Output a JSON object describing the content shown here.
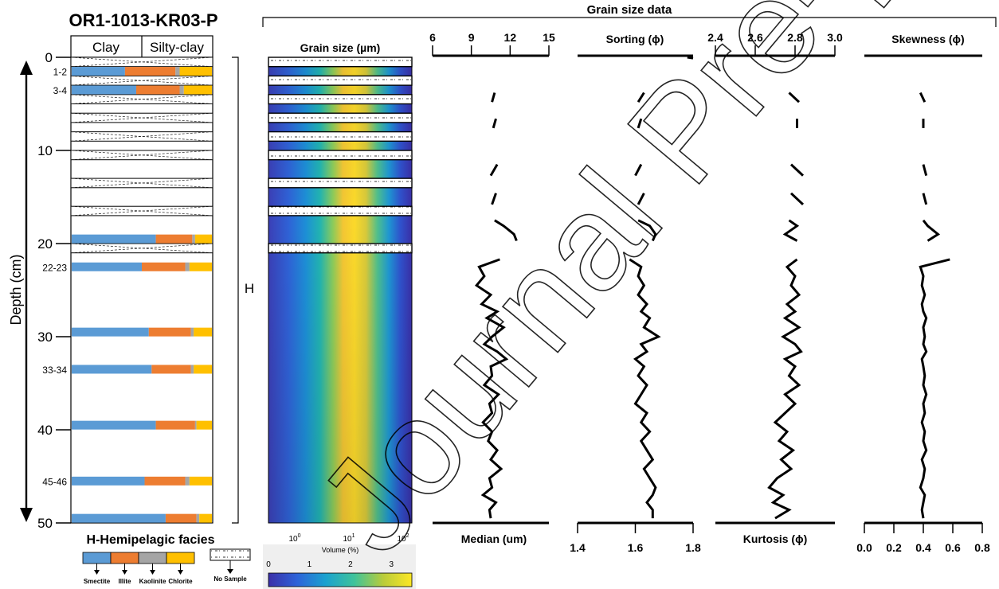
{
  "core": {
    "title": "OR1-1013-KR03-P",
    "lithology_headers": [
      "Clay",
      "Silty-clay"
    ],
    "depth_axis_label": "Depth (cm)",
    "depth_ticks": [
      "0",
      "10",
      "20",
      "30",
      "40",
      "50"
    ],
    "facies_mark": "H",
    "facies_title": "H-Hemipelagic facies"
  },
  "clay_samples": [
    {
      "label": "1-2",
      "depth": 1.5,
      "smectite": 38,
      "illite": 36,
      "kaolinite": 3,
      "chlorite": 23
    },
    {
      "label": "3-4",
      "depth": 3.5,
      "smectite": 46,
      "illite": 31,
      "kaolinite": 3,
      "chlorite": 20
    },
    {
      "label": "20",
      "depth": 19.5,
      "smectite": 60,
      "illite": 26,
      "kaolinite": 2,
      "chlorite": 12
    },
    {
      "label": "22-23",
      "depth": 22.5,
      "smectite": 50,
      "illite": 31,
      "kaolinite": 3,
      "chlorite": 16
    },
    {
      "label": "30",
      "depth": 29.5,
      "smectite": 55,
      "illite": 30,
      "kaolinite": 2,
      "chlorite": 13
    },
    {
      "label": "33-34",
      "depth": 33.5,
      "smectite": 57,
      "illite": 28,
      "kaolinite": 2,
      "chlorite": 13
    },
    {
      "label": "40",
      "depth": 39.5,
      "smectite": 60,
      "illite": 28,
      "kaolinite": 1,
      "chlorite": 11
    },
    {
      "label": "45-46",
      "depth": 45.5,
      "smectite": 52,
      "illite": 29,
      "kaolinite": 3,
      "chlorite": 16
    },
    {
      "label": "50",
      "depth": 49.5,
      "smectite": 67,
      "illite": 22,
      "kaolinite": 2,
      "chlorite": 9
    }
  ],
  "no_sample_intervals": [
    [
      0,
      1
    ],
    [
      2,
      3
    ],
    [
      4,
      5
    ],
    [
      6,
      7
    ],
    [
      8,
      9
    ],
    [
      10,
      11
    ],
    [
      13,
      14
    ],
    [
      16,
      17
    ],
    [
      20,
      21
    ]
  ],
  "colors": {
    "smectite": "#5b9bd5",
    "illite": "#ed7d31",
    "kaolinite": "#a5a5a5",
    "chlorite": "#ffc000"
  },
  "legend": {
    "clay_minerals": [
      "Smectite",
      "Illite",
      "Kaolinite",
      "Chlorite"
    ],
    "no_sample": "No Sample",
    "volume_label": "Volume (%)",
    "volume_ticks": [
      "0",
      "1",
      "2",
      "3"
    ]
  },
  "chart_data": [
    {
      "type": "heatmap",
      "title": "Grain size (µm)",
      "x_scale": "log",
      "x_ticks": [
        "10^0",
        "10^1",
        "10^2"
      ],
      "y_range_cm": [
        0,
        50
      ],
      "colorbar": {
        "label": "Volume (%)",
        "range": [
          0,
          3.5
        ],
        "ticks": [
          0,
          1,
          2,
          3
        ]
      }
    },
    {
      "type": "line",
      "group_title": "Grain size data",
      "xlabel": "Median (um)",
      "xlim": [
        6,
        15
      ],
      "x_ticks": [
        "6",
        "9",
        "12",
        "15"
      ],
      "y_range_cm": [
        0,
        50
      ],
      "segments": [
        {
          "x": [
            10.8,
            10.6
          ],
          "y": [
            3.8,
            4.8
          ]
        },
        {
          "x": [
            10.9,
            10.7
          ],
          "y": [
            6.6,
            7.6
          ]
        },
        {
          "x": [
            11.0,
            10.5
          ],
          "y": [
            11.5,
            12.7
          ]
        },
        {
          "x": [
            10.9,
            10.6
          ],
          "y": [
            14.6,
            15.8
          ]
        },
        {
          "x": [
            10.8,
            11.5,
            12.3,
            12.5
          ],
          "y": [
            17.5,
            18.1,
            19.0,
            19.7
          ]
        },
        {
          "x": [
            11.2,
            9.6,
            10.0,
            9.4,
            10.5,
            9.8,
            11.0,
            10.2,
            11.5,
            10.6,
            10.0,
            11.0,
            11.7,
            10.5,
            10.6,
            10.0,
            11.1,
            10.4,
            10.6,
            9.9,
            10.6,
            10.3,
            11.0,
            10.5,
            11.3,
            10.4,
            10.6,
            9.9,
            10.9,
            10.4,
            10.5
          ],
          "y": [
            21.7,
            22.5,
            23.5,
            24.5,
            25.5,
            26.5,
            27.3,
            28.0,
            29.0,
            30.0,
            30.8,
            31.6,
            32.4,
            33.2,
            34.2,
            35.2,
            36.2,
            37.2,
            38.2,
            39.2,
            40.2,
            41.2,
            42.2,
            43.2,
            44.2,
            45.2,
            46.2,
            47.0,
            47.8,
            48.6,
            49.5
          ]
        }
      ]
    },
    {
      "type": "line",
      "xlabel": "Sorting (ϕ)",
      "xlim": [
        1.4,
        1.8
      ],
      "x_ticks": [
        "1.4",
        "1.6",
        "1.8"
      ],
      "y_range_cm": [
        0,
        50
      ],
      "segments": [
        {
          "x": [
            1.78,
            1.8
          ],
          "y": [
            0.0,
            0.1
          ]
        },
        {
          "x": [
            1.63,
            1.61
          ],
          "y": [
            3.8,
            4.8
          ]
        },
        {
          "x": [
            1.62,
            1.61
          ],
          "y": [
            6.6,
            7.6
          ]
        },
        {
          "x": [
            1.62,
            1.6
          ],
          "y": [
            11.5,
            12.7
          ]
        },
        {
          "x": [
            1.63,
            1.61
          ],
          "y": [
            14.6,
            15.8
          ]
        },
        {
          "x": [
            1.61,
            1.65,
            1.67,
            1.66
          ],
          "y": [
            17.5,
            18.1,
            19.0,
            19.7
          ]
        },
        {
          "x": [
            1.58,
            1.62,
            1.61,
            1.63,
            1.61,
            1.64,
            1.62,
            1.65,
            1.63,
            1.68,
            1.62,
            1.64,
            1.6,
            1.63,
            1.61,
            1.64,
            1.62,
            1.6,
            1.64,
            1.62,
            1.65,
            1.62,
            1.64,
            1.66,
            1.63,
            1.65,
            1.67,
            1.66,
            1.64,
            1.66,
            1.66
          ],
          "y": [
            21.7,
            22.5,
            23.5,
            24.5,
            25.5,
            26.5,
            27.3,
            28.0,
            29.0,
            30.0,
            30.8,
            31.6,
            32.4,
            33.2,
            34.2,
            35.2,
            36.2,
            37.2,
            38.2,
            39.2,
            40.2,
            41.2,
            42.2,
            43.2,
            44.2,
            45.2,
            46.2,
            47.0,
            47.8,
            48.6,
            49.5
          ]
        }
      ]
    },
    {
      "type": "line",
      "xlabel": "Kurtosis (ϕ)",
      "xlim": [
        2.4,
        3.0
      ],
      "x_ticks": [
        "2.4",
        "2.6",
        "2.8",
        "3.0"
      ],
      "y_range_cm": [
        0,
        50
      ],
      "segments": [
        {
          "x": [
            2.77,
            2.82
          ],
          "y": [
            3.8,
            4.8
          ]
        },
        {
          "x": [
            2.81,
            2.81
          ],
          "y": [
            6.6,
            7.6
          ]
        },
        {
          "x": [
            2.78,
            2.84
          ],
          "y": [
            11.5,
            12.7
          ]
        },
        {
          "x": [
            2.78,
            2.84
          ],
          "y": [
            14.6,
            15.8
          ]
        },
        {
          "x": [
            2.77,
            2.81,
            2.75,
            2.81
          ],
          "y": [
            17.5,
            18.1,
            19.0,
            19.7
          ]
        },
        {
          "x": [
            2.81,
            2.76,
            2.8,
            2.78,
            2.82,
            2.76,
            2.8,
            2.75,
            2.82,
            2.74,
            2.8,
            2.83,
            2.75,
            2.8,
            2.77,
            2.82,
            2.75,
            2.8,
            2.75,
            2.7,
            2.76,
            2.72,
            2.79,
            2.73,
            2.78,
            2.71,
            2.67,
            2.74,
            2.69,
            2.77,
            2.7
          ],
          "y": [
            21.7,
            22.5,
            23.5,
            24.5,
            25.5,
            26.5,
            27.3,
            28.0,
            29.0,
            30.0,
            30.8,
            31.6,
            32.4,
            33.2,
            34.2,
            35.2,
            36.2,
            37.2,
            38.2,
            39.2,
            40.2,
            41.2,
            42.2,
            43.2,
            44.2,
            45.2,
            46.2,
            47.0,
            47.8,
            48.6,
            49.5
          ]
        }
      ]
    },
    {
      "type": "line",
      "xlabel": "Skewness (ϕ)",
      "xlim": [
        0.0,
        0.8
      ],
      "x_ticks": [
        "0.0",
        "0.2",
        "0.4",
        "0.6",
        "0.8"
      ],
      "y_range_cm": [
        0,
        50
      ],
      "segments": [
        {
          "x": [
            0.38,
            0.41
          ],
          "y": [
            3.8,
            4.8
          ]
        },
        {
          "x": [
            0.4,
            0.4
          ],
          "y": [
            6.6,
            7.6
          ]
        },
        {
          "x": [
            0.4,
            0.42
          ],
          "y": [
            11.5,
            12.7
          ]
        },
        {
          "x": [
            0.4,
            0.42
          ],
          "y": [
            14.6,
            15.8
          ]
        },
        {
          "x": [
            0.4,
            0.43,
            0.5,
            0.43
          ],
          "y": [
            17.5,
            18.1,
            19.0,
            19.7
          ]
        },
        {
          "x": [
            0.58,
            0.38,
            0.4,
            0.39,
            0.41,
            0.39,
            0.4,
            0.42,
            0.4,
            0.41,
            0.4,
            0.42,
            0.39,
            0.4,
            0.41,
            0.4,
            0.42,
            0.4,
            0.41,
            0.39,
            0.41,
            0.4,
            0.42,
            0.39,
            0.41,
            0.4,
            0.38,
            0.41,
            0.4,
            0.39,
            0.4
          ],
          "y": [
            21.7,
            22.5,
            23.5,
            24.5,
            25.5,
            26.5,
            27.3,
            28.0,
            29.0,
            30.0,
            30.8,
            31.6,
            32.4,
            33.2,
            34.2,
            35.2,
            36.2,
            37.2,
            38.2,
            39.2,
            40.2,
            41.2,
            42.2,
            43.2,
            44.2,
            45.2,
            46.2,
            47.0,
            47.8,
            48.6,
            49.5
          ]
        }
      ]
    }
  ],
  "watermark": "Journal Pre-proof"
}
